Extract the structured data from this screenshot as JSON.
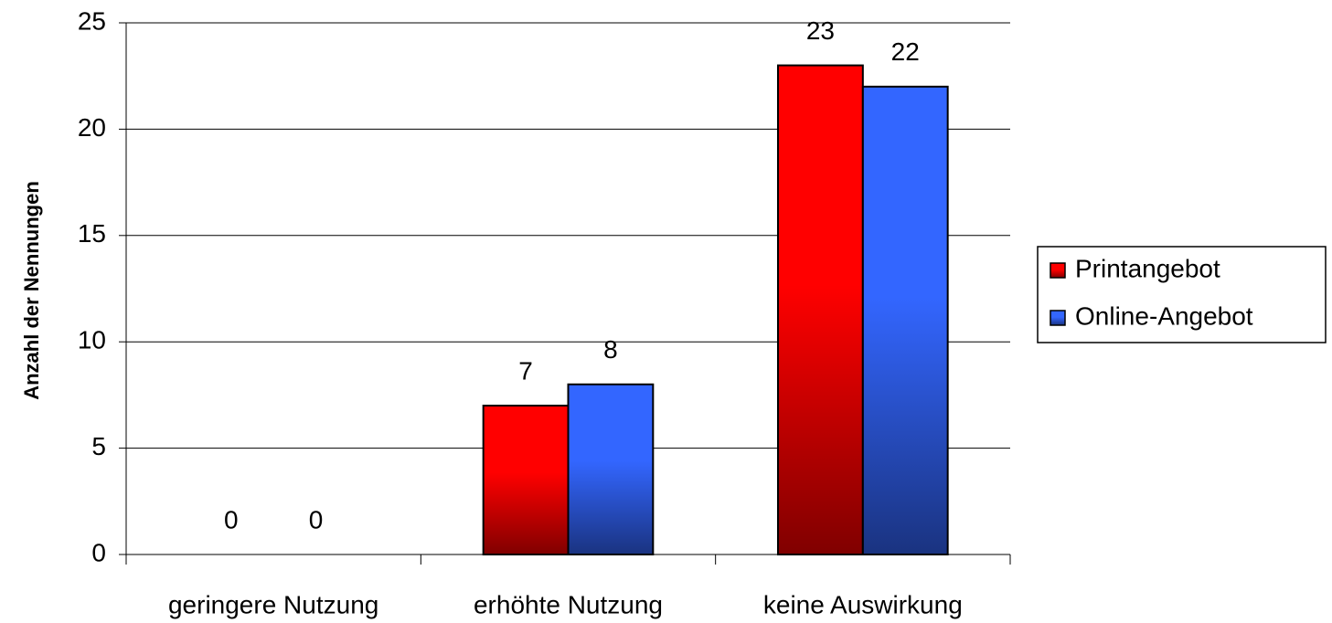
{
  "chart_data": {
    "type": "bar",
    "y_axis_label": "Anzahl der Nennungen",
    "categories": [
      "geringere Nutzung",
      "erhöhte Nutzung",
      "keine Auswirkung"
    ],
    "series": [
      {
        "name": "Printangebot",
        "color": "#ff0000",
        "values": [
          0,
          7,
          23
        ]
      },
      {
        "name": "Online-Angebot",
        "color": "#3366ff",
        "values": [
          0,
          8,
          22
        ]
      }
    ],
    "ylim": [
      0,
      25
    ],
    "yticks": [
      0,
      5,
      10,
      15,
      20,
      25
    ],
    "grid": true,
    "legend": "right"
  }
}
